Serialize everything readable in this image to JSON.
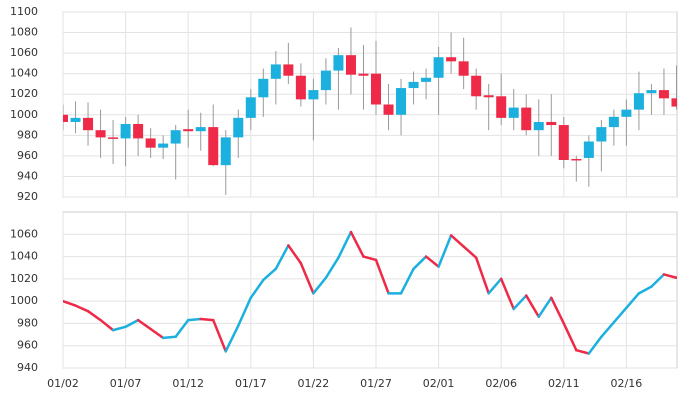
{
  "chart_data": [
    {
      "type": "candlestick",
      "up_color": "#1cb0de",
      "down_color": "#ee2a48",
      "wick_color": "#999999",
      "open": [
        1000,
        993,
        997,
        985,
        978,
        977,
        991,
        977,
        968,
        972,
        986,
        984,
        988,
        951,
        978,
        997,
        1017,
        1035,
        1049,
        1038,
        1015,
        1024,
        1043,
        1058,
        1040,
        1040,
        1010,
        1000,
        1026,
        1032,
        1036,
        1056,
        1052,
        1038,
        1019,
        1018,
        997,
        1007,
        985,
        993,
        990,
        957,
        958,
        974,
        988,
        998,
        1005,
        1021,
        1024,
        1016
      ],
      "high": [
        1010,
        1013,
        1012,
        1005,
        995,
        998,
        1000,
        987,
        980,
        990,
        1005,
        1002,
        1010,
        985,
        1005,
        1025,
        1045,
        1062,
        1070,
        1050,
        1035,
        1055,
        1065,
        1085,
        1068,
        1072,
        1030,
        1035,
        1042,
        1045,
        1066,
        1080,
        1075,
        1045,
        1030,
        1040,
        1025,
        1020,
        1015,
        1020,
        998,
        960,
        980,
        995,
        1005,
        1015,
        1042,
        1030,
        1045,
        1048
      ],
      "low": [
        985,
        982,
        970,
        958,
        952,
        950,
        960,
        958,
        957,
        937,
        968,
        965,
        950,
        922,
        958,
        985,
        998,
        1010,
        1030,
        1008,
        975,
        1010,
        1005,
        1020,
        1005,
        1000,
        985,
        980,
        1010,
        1015,
        1000,
        1040,
        1025,
        1005,
        985,
        990,
        985,
        980,
        960,
        960,
        948,
        935,
        930,
        945,
        970,
        970,
        985,
        1000,
        1000,
        1005
      ],
      "close": [
        993,
        997,
        985,
        978,
        977,
        991,
        977,
        968,
        972,
        985,
        984,
        988,
        951,
        978,
        997,
        1017,
        1035,
        1049,
        1038,
        1015,
        1024,
        1043,
        1058,
        1039,
        1038,
        1010,
        1000,
        1026,
        1032,
        1036,
        1056,
        1052,
        1038,
        1018,
        1017,
        997,
        1007,
        985,
        993,
        990,
        956,
        956,
        974,
        988,
        998,
        1005,
        1021,
        1024,
        1016,
        1008
      ],
      "ylim": [
        920,
        1100
      ],
      "yticks": [
        920,
        940,
        960,
        980,
        1000,
        1020,
        1040,
        1060,
        1080,
        1100
      ],
      "grid": true
    },
    {
      "type": "line",
      "up_color": "#1cb0de",
      "down_color": "#ee2a48",
      "categories": [
        "01/02",
        null,
        null,
        null,
        null,
        "01/07",
        null,
        null,
        null,
        null,
        "01/12",
        null,
        null,
        null,
        null,
        "01/17",
        null,
        null,
        null,
        null,
        "01/22",
        null,
        null,
        null,
        null,
        "01/27",
        null,
        null,
        null,
        null,
        "02/01",
        null,
        null,
        null,
        null,
        "02/06",
        null,
        null,
        null,
        null,
        "02/11",
        null,
        null,
        null,
        null,
        "02/16",
        null,
        null,
        null,
        null
      ],
      "values": [
        1000,
        996,
        991,
        983,
        974,
        977,
        983,
        975,
        967,
        968,
        983,
        984,
        983,
        955,
        978,
        1003,
        1019,
        1029,
        1050,
        1034,
        1007,
        1021,
        1039,
        1062,
        1040,
        1037,
        1007,
        1007,
        1029,
        1040,
        1031,
        1059,
        1049,
        1039,
        1007,
        1020,
        993,
        1005,
        986,
        1003,
        980,
        956,
        953,
        968,
        981,
        994,
        1007,
        1013,
        1024,
        1021
      ],
      "ylim": [
        940,
        1080
      ],
      "yticks": [
        940,
        960,
        980,
        1000,
        1020,
        1040,
        1060
      ],
      "grid": true
    }
  ]
}
